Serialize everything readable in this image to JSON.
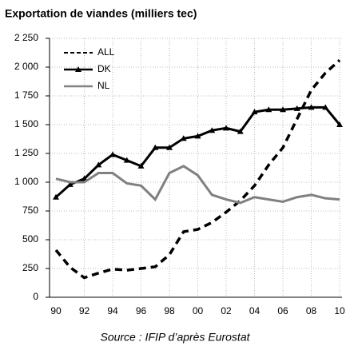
{
  "chart_data": {
    "type": "line",
    "title": "Exportation de viandes (milliers tec)",
    "note": "Source : IFIP d’après Eurostat",
    "categories": [
      "90",
      null,
      "92",
      null,
      "94",
      null,
      "96",
      null,
      "98",
      null,
      "00",
      null,
      "02",
      null,
      "04",
      null,
      "06",
      null,
      "08",
      null,
      "10"
    ],
    "series": [
      {
        "name": "ALL",
        "color": "#000000",
        "line_style": "dashed",
        "values": [
          410,
          260,
          170,
          210,
          245,
          235,
          250,
          265,
          370,
          570,
          590,
          650,
          740,
          840,
          970,
          1150,
          1300,
          1550,
          1800,
          1950,
          2060
        ]
      },
      {
        "name": "DK",
        "color": "#000000",
        "marker": "triangle",
        "values": [
          870,
          980,
          1030,
          1150,
          1240,
          1190,
          1140,
          1300,
          1300,
          1380,
          1400,
          1450,
          1470,
          1440,
          1610,
          1630,
          1630,
          1640,
          1650,
          1650,
          1500
        ]
      },
      {
        "name": "NL",
        "color": "#808080",
        "values": [
          1030,
          1000,
          1000,
          1080,
          1080,
          990,
          970,
          850,
          1080,
          1140,
          1060,
          890,
          850,
          820,
          870,
          850,
          830,
          870,
          890,
          860,
          850
        ]
      }
    ],
    "ylim": [
      0,
      2250
    ],
    "yticks": [
      0,
      250,
      500,
      750,
      {
        "value": 1000,
        "label": "1 000"
      },
      {
        "value": 1250,
        "label": "1 250"
      },
      {
        "value": 1500,
        "label": "1 500"
      },
      {
        "value": 1750,
        "label": "1 750"
      },
      {
        "value": 2000,
        "label": "2 000"
      },
      {
        "value": 2250,
        "label": "2 250"
      }
    ],
    "grid": true,
    "legend": "upper left"
  }
}
